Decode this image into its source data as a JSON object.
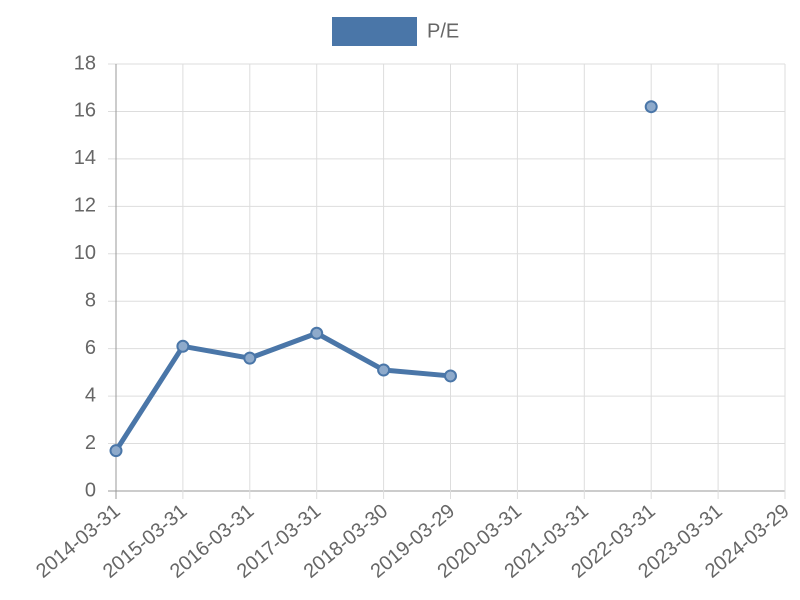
{
  "chart_data": {
    "type": "line",
    "categories": [
      "2014-03-31",
      "2015-03-31",
      "2016-03-31",
      "2017-03-31",
      "2018-03-30",
      "2019-03-29",
      "2020-03-31",
      "2021-03-31",
      "2022-03-31",
      "2023-03-31",
      "2024-03-29"
    ],
    "series": [
      {
        "name": "P/E",
        "color": "#4a76a8",
        "values": [
          1.7,
          6.1,
          5.6,
          6.65,
          5.1,
          4.85,
          null,
          null,
          16.2,
          null,
          null
        ]
      }
    ],
    "ylim": [
      0,
      18
    ],
    "yticks": [
      0,
      2,
      4,
      6,
      8,
      10,
      12,
      14,
      16,
      18
    ],
    "grid": true,
    "legend": "top"
  }
}
